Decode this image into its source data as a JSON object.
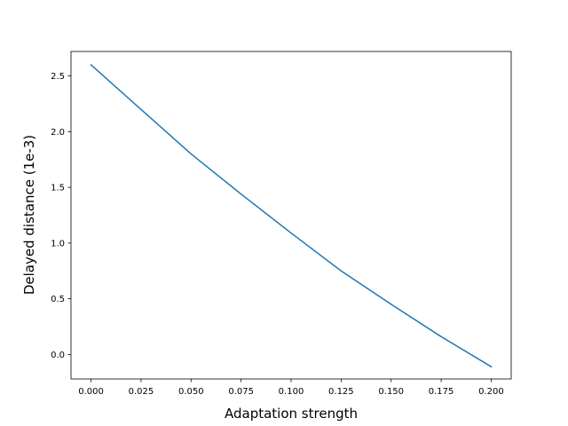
{
  "chart_data": {
    "type": "line",
    "title": "",
    "xlabel": "Adaptation strength",
    "ylabel": "Delayed distance (1e-3)",
    "xlim": [
      -0.01,
      0.21
    ],
    "ylim": [
      -0.22,
      2.72
    ],
    "grid": false,
    "legend": "none",
    "x_ticks": [
      0.0,
      0.025,
      0.05,
      0.075,
      0.1,
      0.125,
      0.15,
      0.175,
      0.2
    ],
    "x_tick_labels": [
      "0.000",
      "0.025",
      "0.050",
      "0.075",
      "0.100",
      "0.125",
      "0.150",
      "0.175",
      "0.200"
    ],
    "y_ticks": [
      0.0,
      0.5,
      1.0,
      1.5,
      2.0,
      2.5
    ],
    "y_tick_labels": [
      "0.0",
      "0.5",
      "1.0",
      "1.5",
      "2.0",
      "2.5"
    ],
    "series": [
      {
        "color": "#1f77b4",
        "x": [
          0.0,
          0.025,
          0.05,
          0.075,
          0.1,
          0.125,
          0.15,
          0.175,
          0.2
        ],
        "y": [
          2.6,
          2.2,
          1.8,
          1.44,
          1.09,
          0.75,
          0.45,
          0.16,
          -0.11
        ]
      }
    ]
  }
}
